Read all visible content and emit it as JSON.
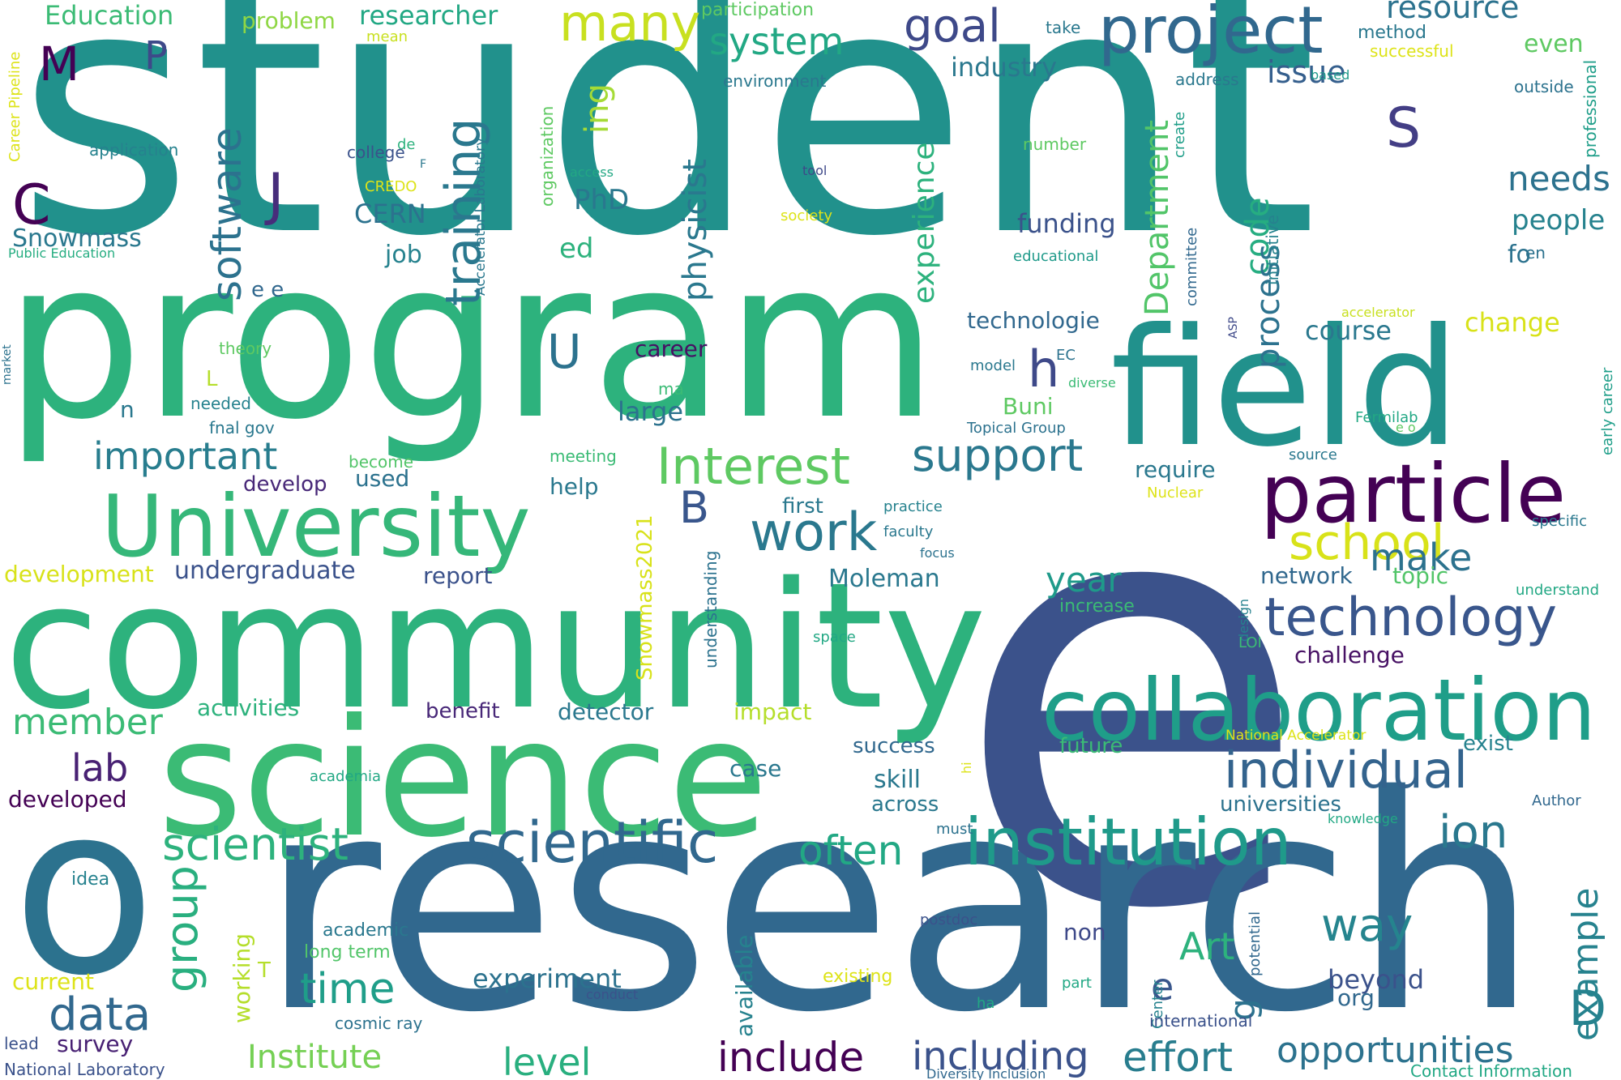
{
  "words": [
    {
      "t": "student",
      "c": "#21918c"
    },
    {
      "t": "e",
      "c": "#3b528b"
    },
    {
      "t": "program",
      "c": "#2db27d"
    },
    {
      "t": "research",
      "c": "#31688e"
    },
    {
      "t": "community",
      "c": "#2db27d"
    },
    {
      "t": "science",
      "c": "#3bbb75"
    },
    {
      "t": "field",
      "c": "#21918c"
    },
    {
      "t": "o",
      "c": "#2c728e"
    },
    {
      "t": "collaboration",
      "c": "#1f9e89"
    },
    {
      "t": "particle",
      "c": "#440154"
    },
    {
      "t": "University",
      "c": "#35b779"
    },
    {
      "t": "project",
      "c": "#31688e"
    },
    {
      "t": "institution",
      "c": "#1f9a8a"
    },
    {
      "t": "technology",
      "c": "#39568c"
    },
    {
      "t": "scientific",
      "c": "#31688e"
    },
    {
      "t": "individual",
      "c": "#33638d"
    },
    {
      "t": "many",
      "c": "#c8e020"
    },
    {
      "t": "Interest",
      "c": "#5ec962"
    },
    {
      "t": "school",
      "c": "#d8e219"
    },
    {
      "t": "work",
      "c": "#2a788e"
    },
    {
      "t": "support",
      "c": "#2a788e"
    },
    {
      "t": "scientist",
      "c": "#2db27d"
    },
    {
      "t": "often",
      "c": "#22a884"
    },
    {
      "t": "training",
      "c": "#2a788e"
    },
    {
      "t": "software",
      "c": "#2c728e"
    },
    {
      "t": "system",
      "c": "#22a884"
    },
    {
      "t": "goal",
      "c": "#3e4989"
    },
    {
      "t": "time",
      "c": "#1f9e89"
    },
    {
      "t": "important",
      "c": "#287d8e"
    },
    {
      "t": "group",
      "c": "#29af7f"
    },
    {
      "t": "data",
      "c": "#31688e"
    },
    {
      "t": "way",
      "c": "#25848e"
    },
    {
      "t": "ion",
      "c": "#2a788e"
    },
    {
      "t": "include",
      "c": "#440154"
    },
    {
      "t": "including",
      "c": "#3b528b"
    },
    {
      "t": "effort",
      "c": "#287d8e"
    },
    {
      "t": "opportunities",
      "c": "#2c728e"
    },
    {
      "t": "example",
      "c": "#26828e"
    },
    {
      "t": "physicist",
      "c": "#2a788e"
    },
    {
      "t": "experience",
      "c": "#2db27d"
    },
    {
      "t": "Department",
      "c": "#52c569"
    },
    {
      "t": "code",
      "c": "#26ad81"
    },
    {
      "t": "process",
      "c": "#2c728e"
    },
    {
      "t": "member",
      "c": "#3bbb75"
    },
    {
      "t": "lab",
      "c": "#482173"
    },
    {
      "t": "level",
      "c": "#29af7f"
    },
    {
      "t": "Institute",
      "c": "#75d054"
    },
    {
      "t": "make",
      "c": "#2c728e"
    },
    {
      "t": "year",
      "c": "#1f9a8a"
    },
    {
      "t": "resource",
      "c": "#2c728e"
    },
    {
      "t": "needs",
      "c": "#2c728e"
    },
    {
      "t": "people",
      "c": "#26828e"
    },
    {
      "t": "issue",
      "c": "#355f8d"
    },
    {
      "t": "M",
      "c": "#440154"
    },
    {
      "t": "P",
      "c": "#3e4989"
    },
    {
      "t": "C",
      "c": "#440154"
    },
    {
      "t": "J",
      "c": "#472d7b"
    },
    {
      "t": "S",
      "c": "#433e85"
    },
    {
      "t": "h",
      "c": "#3e4989"
    },
    {
      "t": "U",
      "c": "#2c728e"
    },
    {
      "t": "B",
      "c": "#39568c"
    },
    {
      "t": "D",
      "c": "#26828e"
    },
    {
      "t": "Art",
      "c": "#2db27d"
    },
    {
      "t": "e",
      "c": "#39568c"
    },
    {
      "t": "g",
      "c": "#2c728e"
    },
    {
      "t": "ing",
      "c": "#a5db36"
    },
    {
      "t": "ed",
      "c": "#2db27d"
    },
    {
      "t": "PhD",
      "c": "#2a788e"
    },
    {
      "t": "CERN",
      "c": "#2c728e"
    },
    {
      "t": "job",
      "c": "#26828e"
    },
    {
      "t": "Snowmass",
      "c": "#2a788e"
    },
    {
      "t": "Education",
      "c": "#3bbb75"
    },
    {
      "t": "problem",
      "c": "#8fd744"
    },
    {
      "t": "researcher",
      "c": "#22a884"
    },
    {
      "t": "participation",
      "c": "#5ec962"
    },
    {
      "t": "industry",
      "c": "#2a788e"
    },
    {
      "t": "even",
      "c": "#5ec962"
    },
    {
      "t": "method",
      "c": "#2a788e"
    },
    {
      "t": "successful",
      "c": "#dde318"
    },
    {
      "t": "environment",
      "c": "#2a788e"
    },
    {
      "t": "address",
      "c": "#2a788e"
    },
    {
      "t": "based",
      "c": "#1f9a8a"
    },
    {
      "t": "outside",
      "c": "#2c728e"
    },
    {
      "t": "professional",
      "c": "#1f9e89"
    },
    {
      "t": "funding",
      "c": "#3b528b"
    },
    {
      "t": "technologie",
      "c": "#31688e"
    },
    {
      "t": "course",
      "c": "#2a788e"
    },
    {
      "t": "change",
      "c": "#d8e219"
    },
    {
      "t": "career",
      "c": "#471164"
    },
    {
      "t": "large",
      "c": "#2c728e"
    },
    {
      "t": "Buni",
      "c": "#5ec962"
    },
    {
      "t": "require",
      "c": "#2a788e"
    },
    {
      "t": "help",
      "c": "#2a788e"
    },
    {
      "t": "used",
      "c": "#2c728e"
    },
    {
      "t": "develop",
      "c": "#482878"
    },
    {
      "t": "first",
      "c": "#2a788e"
    },
    {
      "t": "undergraduate",
      "c": "#3b528b"
    },
    {
      "t": "development",
      "c": "#d8e219"
    },
    {
      "t": "report",
      "c": "#3b528b"
    },
    {
      "t": "Moleman",
      "c": "#2a788e"
    },
    {
      "t": "network",
      "c": "#31688e"
    },
    {
      "t": "topic",
      "c": "#52c569"
    },
    {
      "t": "challenge",
      "c": "#471164"
    },
    {
      "t": "activities",
      "c": "#2db27d"
    },
    {
      "t": "benefit",
      "c": "#482878"
    },
    {
      "t": "detector",
      "c": "#2a788e"
    },
    {
      "t": "impact",
      "c": "#b5de2b"
    },
    {
      "t": "success",
      "c": "#31688e"
    },
    {
      "t": "future",
      "c": "#3bbb75"
    },
    {
      "t": "case",
      "c": "#2a788e"
    },
    {
      "t": "skill",
      "c": "#2a788e"
    },
    {
      "t": "across",
      "c": "#2a788e"
    },
    {
      "t": "universities",
      "c": "#2c728e"
    },
    {
      "t": "developed",
      "c": "#440154"
    },
    {
      "t": "survey",
      "c": "#482173"
    },
    {
      "t": "experiment",
      "c": "#2c728e"
    },
    {
      "t": "beyond",
      "c": "#3b528b"
    },
    {
      "t": "org",
      "c": "#31688e"
    },
    {
      "t": "available",
      "c": "#26828e"
    },
    {
      "t": "working",
      "c": "#b5de2b"
    },
    {
      "t": "current",
      "c": "#dde318"
    },
    {
      "t": "academic",
      "c": "#2a788e"
    },
    {
      "t": "long term",
      "c": "#52c569"
    },
    {
      "t": "non",
      "c": "#3e4989"
    },
    {
      "t": "exist",
      "c": "#26828e"
    },
    {
      "t": "Snowmass2021",
      "c": "#d8e219"
    },
    {
      "t": "understanding",
      "c": "#2c728e"
    },
    {
      "t": "n",
      "c": "#2a788e"
    },
    {
      "t": "L",
      "c": "#b5de2b"
    },
    {
      "t": "T",
      "c": "#b5de2b"
    },
    {
      "t": "e e",
      "c": "#31688e"
    },
    {
      "t": "application",
      "c": "#26828e"
    },
    {
      "t": "college",
      "c": "#3b528b"
    },
    {
      "t": "CREDO",
      "c": "#dde318"
    },
    {
      "t": "Public Education",
      "c": "#26ad81"
    },
    {
      "t": "Career Pipeline",
      "c": "#dde318"
    },
    {
      "t": "market",
      "c": "#2c728e"
    },
    {
      "t": "theory",
      "c": "#5ec962"
    },
    {
      "t": "needed",
      "c": "#26828e"
    },
    {
      "t": "fnal gov",
      "c": "#2a788e"
    },
    {
      "t": "become",
      "c": "#52c569"
    },
    {
      "t": "meeting",
      "c": "#3bbb75"
    },
    {
      "t": "ma",
      "c": "#3bbb75"
    },
    {
      "t": "mean",
      "c": "#c8e020"
    },
    {
      "t": "organization",
      "c": "#5ec962"
    },
    {
      "t": "Accelerator Laboratory",
      "c": "#2a788e"
    },
    {
      "t": "access",
      "c": "#22a884"
    },
    {
      "t": "society",
      "c": "#dde318"
    },
    {
      "t": "tool",
      "c": "#3e4989"
    },
    {
      "t": "take",
      "c": "#2a788e"
    },
    {
      "t": "de",
      "c": "#2db27d"
    },
    {
      "t": "F",
      "c": "#2a788e"
    },
    {
      "t": "number",
      "c": "#5ec962"
    },
    {
      "t": "create",
      "c": "#1f9e89"
    },
    {
      "t": "educational",
      "c": "#1f9a8a"
    },
    {
      "t": "committee",
      "c": "#31688e"
    },
    {
      "t": "initiative",
      "c": "#26828e"
    },
    {
      "t": "accelerator",
      "c": "#c8e020"
    },
    {
      "t": "en",
      "c": "#2c728e"
    },
    {
      "t": "fo",
      "c": "#2c728e"
    },
    {
      "t": "early career",
      "c": "#1f9e89"
    },
    {
      "t": "ASP",
      "c": "#3e4989"
    },
    {
      "t": "EC",
      "c": "#2c728e"
    },
    {
      "t": "model",
      "c": "#2a788e"
    },
    {
      "t": "diverse",
      "c": "#3bbb75"
    },
    {
      "t": "Topical Group",
      "c": "#2c728e"
    },
    {
      "t": "Fermilab",
      "c": "#22a884"
    },
    {
      "t": "e o",
      "c": "#5ec962"
    },
    {
      "t": "source",
      "c": "#2a788e"
    },
    {
      "t": "Nuclear",
      "c": "#dde318"
    },
    {
      "t": "specific",
      "c": "#2a788e"
    },
    {
      "t": "practice",
      "c": "#26828e"
    },
    {
      "t": "faculty",
      "c": "#2a788e"
    },
    {
      "t": "focus",
      "c": "#2c728e"
    },
    {
      "t": "increase",
      "c": "#3bbb75"
    },
    {
      "t": "design",
      "c": "#26828e"
    },
    {
      "t": "LOI",
      "c": "#3bbb75"
    },
    {
      "t": "understand",
      "c": "#22a884"
    },
    {
      "t": "space",
      "c": "#22a884"
    },
    {
      "t": "National Accelerator",
      "c": "#dde318"
    },
    {
      "t": "hi",
      "c": "#dde318"
    },
    {
      "t": "academia",
      "c": "#22a884"
    },
    {
      "t": "must",
      "c": "#2c728e"
    },
    {
      "t": "knowledge",
      "c": "#22a884"
    },
    {
      "t": "Author",
      "c": "#31688e"
    },
    {
      "t": "idea",
      "c": "#26828e"
    },
    {
      "t": "postdoc",
      "c": "#3b528b"
    },
    {
      "t": "potential",
      "c": "#31688e"
    },
    {
      "t": "existing",
      "c": "#dde318"
    },
    {
      "t": "part",
      "c": "#22a884"
    },
    {
      "t": "Center",
      "c": "#26828e"
    },
    {
      "t": "ha",
      "c": "#22a884"
    },
    {
      "t": "conduct",
      "c": "#3b528b"
    },
    {
      "t": "cosmic ray",
      "c": "#2c728e"
    },
    {
      "t": "international",
      "c": "#3b528b"
    },
    {
      "t": "lead",
      "c": "#3b528b"
    },
    {
      "t": "National Laboratory",
      "c": "#3b528b"
    },
    {
      "t": "Diversity Inclusion",
      "c": "#31688e"
    },
    {
      "t": "Contact Information",
      "c": "#22a884"
    }
  ]
}
